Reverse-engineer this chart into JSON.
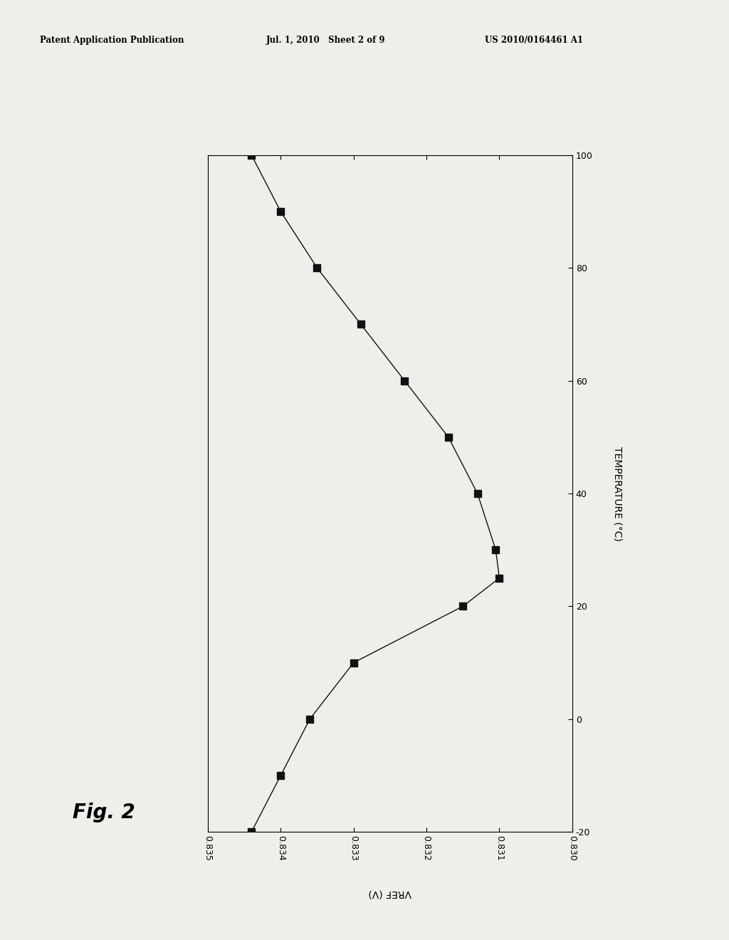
{
  "header_left": "Patent Application Publication",
  "header_center": "Jul. 1, 2010   Sheet 2 of 9",
  "header_right": "US 2010/0164461 A1",
  "fig_label": "Fig. 2",
  "xlabel": "VREF (V)",
  "ylabel": "TEMPERATURE (°C)",
  "xlim": [
    0.835,
    0.83
  ],
  "ylim": [
    -20,
    100
  ],
  "xticks": [
    0.835,
    0.834,
    0.833,
    0.832,
    0.831,
    0.83
  ],
  "yticks": [
    -20,
    0,
    20,
    40,
    60,
    80,
    100
  ],
  "temperature": [
    -20,
    -10,
    0,
    10,
    20,
    25,
    30,
    40,
    50,
    60,
    70,
    80,
    90,
    100
  ],
  "vref": [
    0.8344,
    0.834,
    0.8336,
    0.833,
    0.8315,
    0.831,
    0.83105,
    0.8313,
    0.8317,
    0.8323,
    0.8329,
    0.8335,
    0.834,
    0.8344
  ],
  "marker_color": "#111111",
  "line_color": "#111111",
  "bg_color": "#f0eeea",
  "marker_size": 7,
  "line_width": 1.0,
  "axis_fontsize": 9,
  "label_fontsize": 10,
  "header_fontsize": 8.5,
  "fig_label_fontsize": 20
}
